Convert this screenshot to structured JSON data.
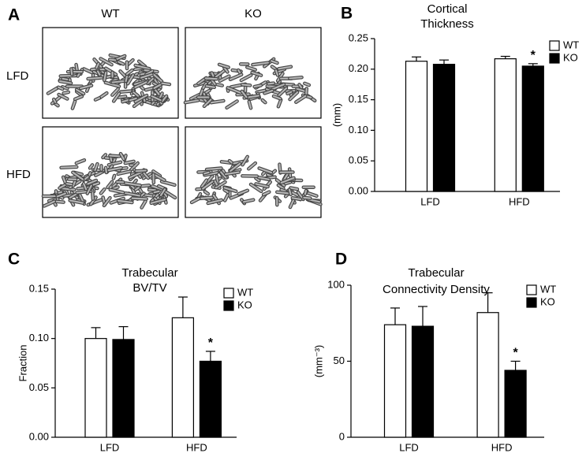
{
  "panel_a": {
    "letter": "A",
    "columns": [
      "WT",
      "KO"
    ],
    "rows": [
      "LFD",
      "HFD"
    ]
  },
  "chart_data": [
    {
      "type": "bar",
      "panel": "B",
      "title": [
        "Cortical",
        "Thickness"
      ],
      "ylabel": "(mm)",
      "categories": [
        "LFD",
        "HFD"
      ],
      "series": [
        {
          "name": "WT",
          "color": "#ffffff",
          "values": [
            0.213,
            0.217
          ],
          "errors": [
            0.007,
            0.004
          ],
          "annotations": [
            null,
            null
          ]
        },
        {
          "name": "KO",
          "color": "#000000",
          "values": [
            0.208,
            0.205
          ],
          "errors": [
            0.007,
            0.004
          ],
          "annotations": [
            null,
            "*"
          ]
        }
      ],
      "ylim": [
        0,
        0.25
      ],
      "yticks": [
        {
          "value": 0,
          "label": "0.00"
        },
        0.05,
        {
          "value": 0.1,
          "label": "0.10"
        },
        0.15,
        {
          "value": 0.2,
          "label": "0.20"
        },
        0.25
      ],
      "legend": "top-right"
    },
    {
      "type": "bar",
      "panel": "C",
      "title": [
        "Trabecular",
        "BV/TV"
      ],
      "ylabel": "Fraction",
      "categories": [
        "LFD",
        "HFD"
      ],
      "series": [
        {
          "name": "WT",
          "color": "#ffffff",
          "values": [
            0.1,
            0.121
          ],
          "errors": [
            0.011,
            0.021
          ],
          "annotations": [
            null,
            null
          ]
        },
        {
          "name": "KO",
          "color": "#000000",
          "values": [
            0.099,
            0.077
          ],
          "errors": [
            0.013,
            0.01
          ],
          "annotations": [
            null,
            "*"
          ]
        }
      ],
      "ylim": [
        0,
        0.15
      ],
      "yticks": [
        {
          "value": 0,
          "label": "0.00"
        },
        0.05,
        {
          "value": 0.1,
          "label": "0.10"
        },
        0.15
      ],
      "legend": "top-right"
    },
    {
      "type": "bar",
      "panel": "D",
      "title": [
        "Trabecular",
        "Connectivity Density"
      ],
      "ylabel": "(mm⁻³)",
      "categories": [
        "LFD",
        "HFD"
      ],
      "series": [
        {
          "name": "WT",
          "color": "#ffffff",
          "values": [
            74,
            82
          ],
          "errors": [
            11,
            13
          ],
          "annotations": [
            null,
            null
          ]
        },
        {
          "name": "KO",
          "color": "#000000",
          "values": [
            73,
            44
          ],
          "errors": [
            13,
            6
          ],
          "annotations": [
            null,
            "*"
          ]
        }
      ],
      "ylim": [
        0,
        100
      ],
      "yticks": [
        0,
        50,
        100
      ],
      "legend": "top-right"
    }
  ]
}
